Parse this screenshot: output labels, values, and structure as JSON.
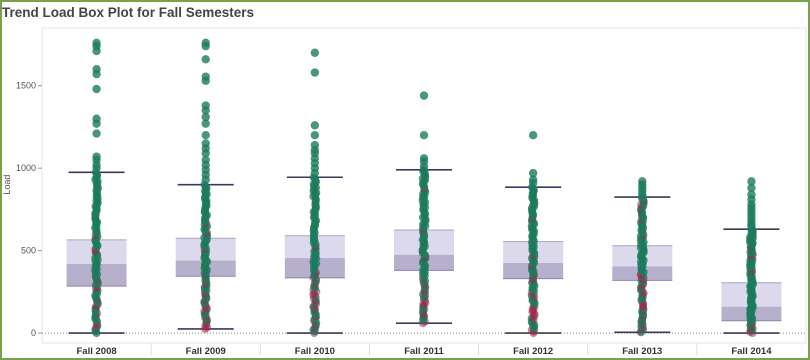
{
  "chart_data": {
    "type": "box",
    "title": "Trend Load Box Plot for Fall Semesters",
    "xlabel": "",
    "ylabel": "Load",
    "ylim": [
      -60,
      1850
    ],
    "yticks": [
      0,
      500,
      1000,
      1500
    ],
    "categories": [
      "Fall 2008",
      "Fall 2009",
      "Fall 2010",
      "Fall 2011",
      "Fall 2012",
      "Fall 2013",
      "Fall 2014"
    ],
    "boxes": [
      {
        "whisker_low": 0,
        "q1": 285,
        "median": 420,
        "q3": 565,
        "whisker_high": 975
      },
      {
        "whisker_low": 25,
        "q1": 345,
        "median": 440,
        "q3": 575,
        "whisker_high": 900
      },
      {
        "whisker_low": 0,
        "q1": 335,
        "median": 455,
        "q3": 590,
        "whisker_high": 945
      },
      {
        "whisker_low": 60,
        "q1": 380,
        "median": 475,
        "q3": 625,
        "whisker_high": 990
      },
      {
        "whisker_low": 0,
        "q1": 330,
        "median": 425,
        "q3": 555,
        "whisker_high": 885
      },
      {
        "whisker_low": 5,
        "q1": 320,
        "median": 405,
        "q3": 530,
        "whisker_high": 825
      },
      {
        "whisker_low": 0,
        "q1": 75,
        "median": 160,
        "q3": 305,
        "whisker_high": 630
      }
    ],
    "outliers": [
      [
        1760,
        1740,
        1710,
        1600,
        1570,
        1480,
        1300,
        1270,
        1210,
        1070,
        1050,
        1020,
        1000
      ],
      [
        1760,
        1740,
        1660,
        1555,
        1530,
        1380,
        1350,
        1310,
        1270,
        1200,
        1150,
        1120,
        1090,
        1050,
        1020,
        990,
        960,
        930
      ],
      [
        1700,
        1580,
        1260,
        1200,
        1140,
        1110,
        1090,
        1060,
        1030,
        1000,
        970
      ],
      [
        1440,
        1200,
        1060,
        1040,
        1010
      ],
      [
        1200,
        970,
        930,
        910
      ],
      [
        920,
        900,
        880,
        860,
        840
      ],
      [
        920,
        880,
        840,
        810,
        780,
        760,
        740,
        720,
        700,
        680,
        660,
        650
      ]
    ],
    "grid": false,
    "colors": {
      "point": "#1d7a5c",
      "point_highlight": "#9b2a4a",
      "box_upper": "#dcd9ec",
      "box_lower": "#b6b0cc",
      "whisker": "#3a3a5c",
      "frame": "#79a34a"
    }
  }
}
